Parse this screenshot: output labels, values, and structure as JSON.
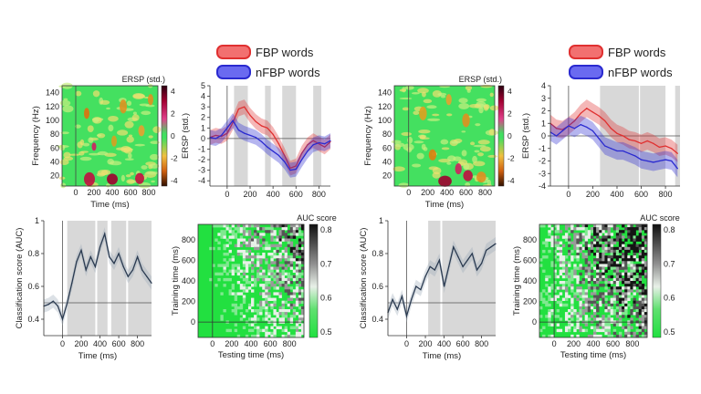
{
  "legend": {
    "left": [
      {
        "label": "FBP words",
        "color": "#e03030"
      },
      {
        "label": "nFBP words",
        "color": "#2a2ad0"
      }
    ],
    "right": [
      {
        "label": "FBP words",
        "color": "#e03030"
      },
      {
        "label": "nFBP words",
        "color": "#2a2ad0"
      }
    ]
  },
  "chart_data": [
    {
      "type": "heatmap",
      "panel": "left-tf",
      "xlabel": "Time (ms)",
      "ylabel": "Frequency (Hz)",
      "xticks": [
        0,
        200,
        400,
        600,
        800
      ],
      "yticks": [
        20,
        40,
        60,
        80,
        100,
        120,
        140
      ],
      "xlim": [
        -150,
        900
      ],
      "ylim": [
        5,
        150
      ],
      "colorbar": {
        "title": "ERSP (std.)",
        "ticks": [
          4,
          2,
          0,
          -2,
          -4
        ]
      },
      "blobs": [
        {
          "t": 150,
          "f": 15,
          "w": 60,
          "h": 10,
          "c": "#c01040"
        },
        {
          "t": 400,
          "f": 15,
          "w": 60,
          "h": 8,
          "c": "#a00030"
        },
        {
          "t": 700,
          "f": 16,
          "w": 50,
          "h": 8,
          "c": "#c01040"
        },
        {
          "t": 200,
          "f": 62,
          "w": 25,
          "h": 6,
          "c": "#d02060"
        },
        {
          "t": 120,
          "f": 110,
          "w": 30,
          "h": 8,
          "c": "#e07010"
        },
        {
          "t": 520,
          "f": 120,
          "w": 40,
          "h": 10,
          "c": "#e09020"
        },
        {
          "t": 720,
          "f": 85,
          "w": 35,
          "h": 8,
          "c": "#e8a030"
        },
        {
          "t": 420,
          "f": 70,
          "w": 30,
          "h": 8,
          "c": "#d8a020"
        },
        {
          "t": 820,
          "f": 130,
          "w": 30,
          "h": 8,
          "c": "#e09020"
        }
      ]
    },
    {
      "type": "line",
      "panel": "left-erp",
      "ylabel": "ERSP (std.)",
      "xticks": [
        0,
        200,
        400,
        600,
        800
      ],
      "yticks": [
        -4,
        -3,
        -2,
        -1,
        0,
        1,
        2,
        3,
        4,
        5
      ],
      "xlim": [
        -150,
        900
      ],
      "ylim": [
        -4.5,
        5
      ],
      "shaded": [
        [
          60,
          180
        ],
        [
          330,
          380
        ],
        [
          480,
          600
        ],
        [
          750,
          820
        ]
      ],
      "x": [
        -150,
        -100,
        -50,
        0,
        50,
        100,
        150,
        200,
        250,
        300,
        350,
        400,
        450,
        500,
        550,
        600,
        650,
        700,
        750,
        800,
        850,
        900
      ],
      "series": [
        {
          "name": "FBP words",
          "color": "#e03030",
          "values": [
            0.1,
            0.3,
            0.2,
            0.5,
            1.5,
            2.8,
            3.0,
            2.2,
            1.6,
            1.2,
            1.0,
            0.4,
            -0.5,
            -1.6,
            -2.8,
            -2.6,
            -1.4,
            -0.6,
            -0.2,
            -0.5,
            -0.8,
            -0.3
          ]
        },
        {
          "name": "nFBP words",
          "color": "#2a2ad0",
          "values": [
            0.1,
            0.0,
            0.3,
            1.0,
            1.7,
            0.8,
            0.5,
            0.3,
            0.1,
            -0.3,
            -0.8,
            -1.2,
            -1.6,
            -2.2,
            -3.0,
            -2.9,
            -2.0,
            -1.2,
            -0.6,
            -0.4,
            -0.5,
            -0.2
          ]
        }
      ]
    },
    {
      "type": "line",
      "panel": "left-auc",
      "xlabel": "Time (ms)",
      "ylabel": "Classification score (AUC)",
      "xticks": [
        0,
        200,
        400,
        600,
        800
      ],
      "yticks": [
        0.4,
        0.6,
        0.8,
        1.0
      ],
      "xlim": [
        -200,
        950
      ],
      "ylim": [
        0.3,
        1.0
      ],
      "shaded": [
        [
          50,
          350
        ],
        [
          370,
          480
        ],
        [
          520,
          680
        ],
        [
          700,
          950
        ]
      ],
      "x": [
        -200,
        -150,
        -100,
        -50,
        0,
        50,
        100,
        150,
        200,
        250,
        300,
        350,
        400,
        450,
        500,
        550,
        600,
        650,
        700,
        750,
        800,
        850,
        900,
        950
      ],
      "series": [
        {
          "name": "",
          "color": "#2a3a50",
          "values": [
            0.48,
            0.49,
            0.51,
            0.48,
            0.4,
            0.5,
            0.62,
            0.75,
            0.82,
            0.7,
            0.78,
            0.72,
            0.84,
            0.92,
            0.78,
            0.74,
            0.8,
            0.72,
            0.66,
            0.7,
            0.78,
            0.7,
            0.66,
            0.62
          ]
        }
      ],
      "hline": 0.5
    },
    {
      "type": "heatmap",
      "panel": "left-gat",
      "xlabel": "Testing time (ms)",
      "ylabel": "Training time (ms)",
      "xticks": [
        0,
        200,
        400,
        600,
        800
      ],
      "yticks": [
        0,
        200,
        400,
        600,
        800
      ],
      "xlim": [
        -150,
        950
      ],
      "ylim": [
        -150,
        950
      ],
      "colorbar": {
        "title": "AUC score",
        "ticks": [
          0.8,
          0.7,
          0.6,
          0.5
        ]
      },
      "density": 0.35
    },
    {
      "type": "heatmap",
      "panel": "right-tf",
      "xlabel": "Time (ms)",
      "ylabel": "Frequency (Hz)",
      "xticks": [
        0,
        200,
        400,
        600,
        800
      ],
      "yticks": [
        20,
        40,
        60,
        80,
        100,
        120,
        140
      ],
      "xlim": [
        -150,
        900
      ],
      "ylim": [
        5,
        150
      ],
      "colorbar": {
        "title": "ERSP (std.)",
        "ticks": [
          4,
          2,
          0,
          -2,
          -4
        ]
      },
      "blobs": [
        {
          "t": 380,
          "f": 12,
          "w": 70,
          "h": 8,
          "c": "#a00030"
        },
        {
          "t": 620,
          "f": 20,
          "w": 50,
          "h": 8,
          "c": "#c01040"
        },
        {
          "t": 250,
          "f": 50,
          "w": 40,
          "h": 8,
          "c": "#e08010"
        },
        {
          "t": 520,
          "f": 30,
          "w": 35,
          "h": 8,
          "c": "#d02060"
        },
        {
          "t": 760,
          "f": 18,
          "w": 50,
          "h": 8,
          "c": "#e09020"
        },
        {
          "t": 150,
          "f": 110,
          "w": 40,
          "h": 10,
          "c": "#e0a020"
        },
        {
          "t": 600,
          "f": 100,
          "w": 40,
          "h": 10,
          "c": "#e09020"
        },
        {
          "t": 420,
          "f": 130,
          "w": 30,
          "h": 8,
          "c": "#e8a030"
        }
      ]
    },
    {
      "type": "line",
      "panel": "right-erp",
      "ylabel": "ERSP (std.)",
      "xticks": [
        0,
        200,
        400,
        600,
        800
      ],
      "yticks": [
        -4,
        -3,
        -2,
        -1,
        0,
        1,
        2,
        3,
        4
      ],
      "xlim": [
        -150,
        920
      ],
      "ylim": [
        -4,
        4
      ],
      "shaded": [
        [
          260,
          580
        ],
        [
          590,
          800
        ],
        [
          880,
          920
        ]
      ],
      "x": [
        -150,
        -100,
        -50,
        0,
        50,
        100,
        150,
        200,
        250,
        300,
        350,
        400,
        450,
        500,
        550,
        600,
        650,
        700,
        750,
        800,
        850,
        900
      ],
      "series": [
        {
          "name": "FBP words",
          "color": "#e03030",
          "values": [
            1.0,
            0.6,
            0.5,
            0.8,
            1.2,
            1.8,
            2.2,
            1.9,
            1.6,
            1.2,
            0.6,
            0.2,
            0.0,
            -0.3,
            -0.4,
            -0.6,
            -0.4,
            -0.6,
            -0.9,
            -0.8,
            -1.0,
            -1.4
          ]
        },
        {
          "name": "nFBP words",
          "color": "#2a2ad0",
          "values": [
            0.3,
            0.0,
            0.4,
            0.8,
            0.6,
            0.9,
            0.7,
            0.4,
            -0.2,
            -0.8,
            -1.0,
            -1.2,
            -1.2,
            -1.4,
            -1.6,
            -1.9,
            -2.0,
            -2.1,
            -2.0,
            -1.9,
            -2.0,
            -2.6
          ]
        }
      ]
    },
    {
      "type": "line",
      "panel": "right-auc",
      "xlabel": "Time (ms)",
      "ylabel": "Classification score (AUC)",
      "xticks": [
        0,
        200,
        400,
        600,
        800
      ],
      "yticks": [
        0.4,
        0.6,
        0.8,
        1.0
      ],
      "xlim": [
        -200,
        950
      ],
      "ylim": [
        0.3,
        1.0
      ],
      "shaded": [
        [
          230,
          360
        ],
        [
          380,
          950
        ]
      ],
      "x": [
        -200,
        -150,
        -100,
        -50,
        0,
        50,
        100,
        150,
        200,
        250,
        300,
        350,
        400,
        450,
        500,
        550,
        600,
        650,
        700,
        750,
        800,
        850,
        900,
        950
      ],
      "series": [
        {
          "name": "",
          "color": "#2a3a50",
          "values": [
            0.44,
            0.52,
            0.46,
            0.54,
            0.42,
            0.52,
            0.6,
            0.58,
            0.66,
            0.72,
            0.7,
            0.76,
            0.6,
            0.72,
            0.84,
            0.78,
            0.72,
            0.76,
            0.8,
            0.7,
            0.74,
            0.82,
            0.84,
            0.86
          ]
        }
      ],
      "hline": 0.5
    },
    {
      "type": "heatmap",
      "panel": "right-gat",
      "xlabel": "Testing time (ms)",
      "ylabel": "Training time (ms)",
      "xticks": [
        0,
        200,
        400,
        600,
        800
      ],
      "yticks": [
        0,
        200,
        400,
        600,
        800
      ],
      "xlim": [
        -150,
        950
      ],
      "ylim": [
        -150,
        950
      ],
      "colorbar": {
        "title": "AUC score",
        "ticks": [
          0.8,
          0.7,
          0.6,
          0.5
        ]
      },
      "density": 0.55
    }
  ]
}
